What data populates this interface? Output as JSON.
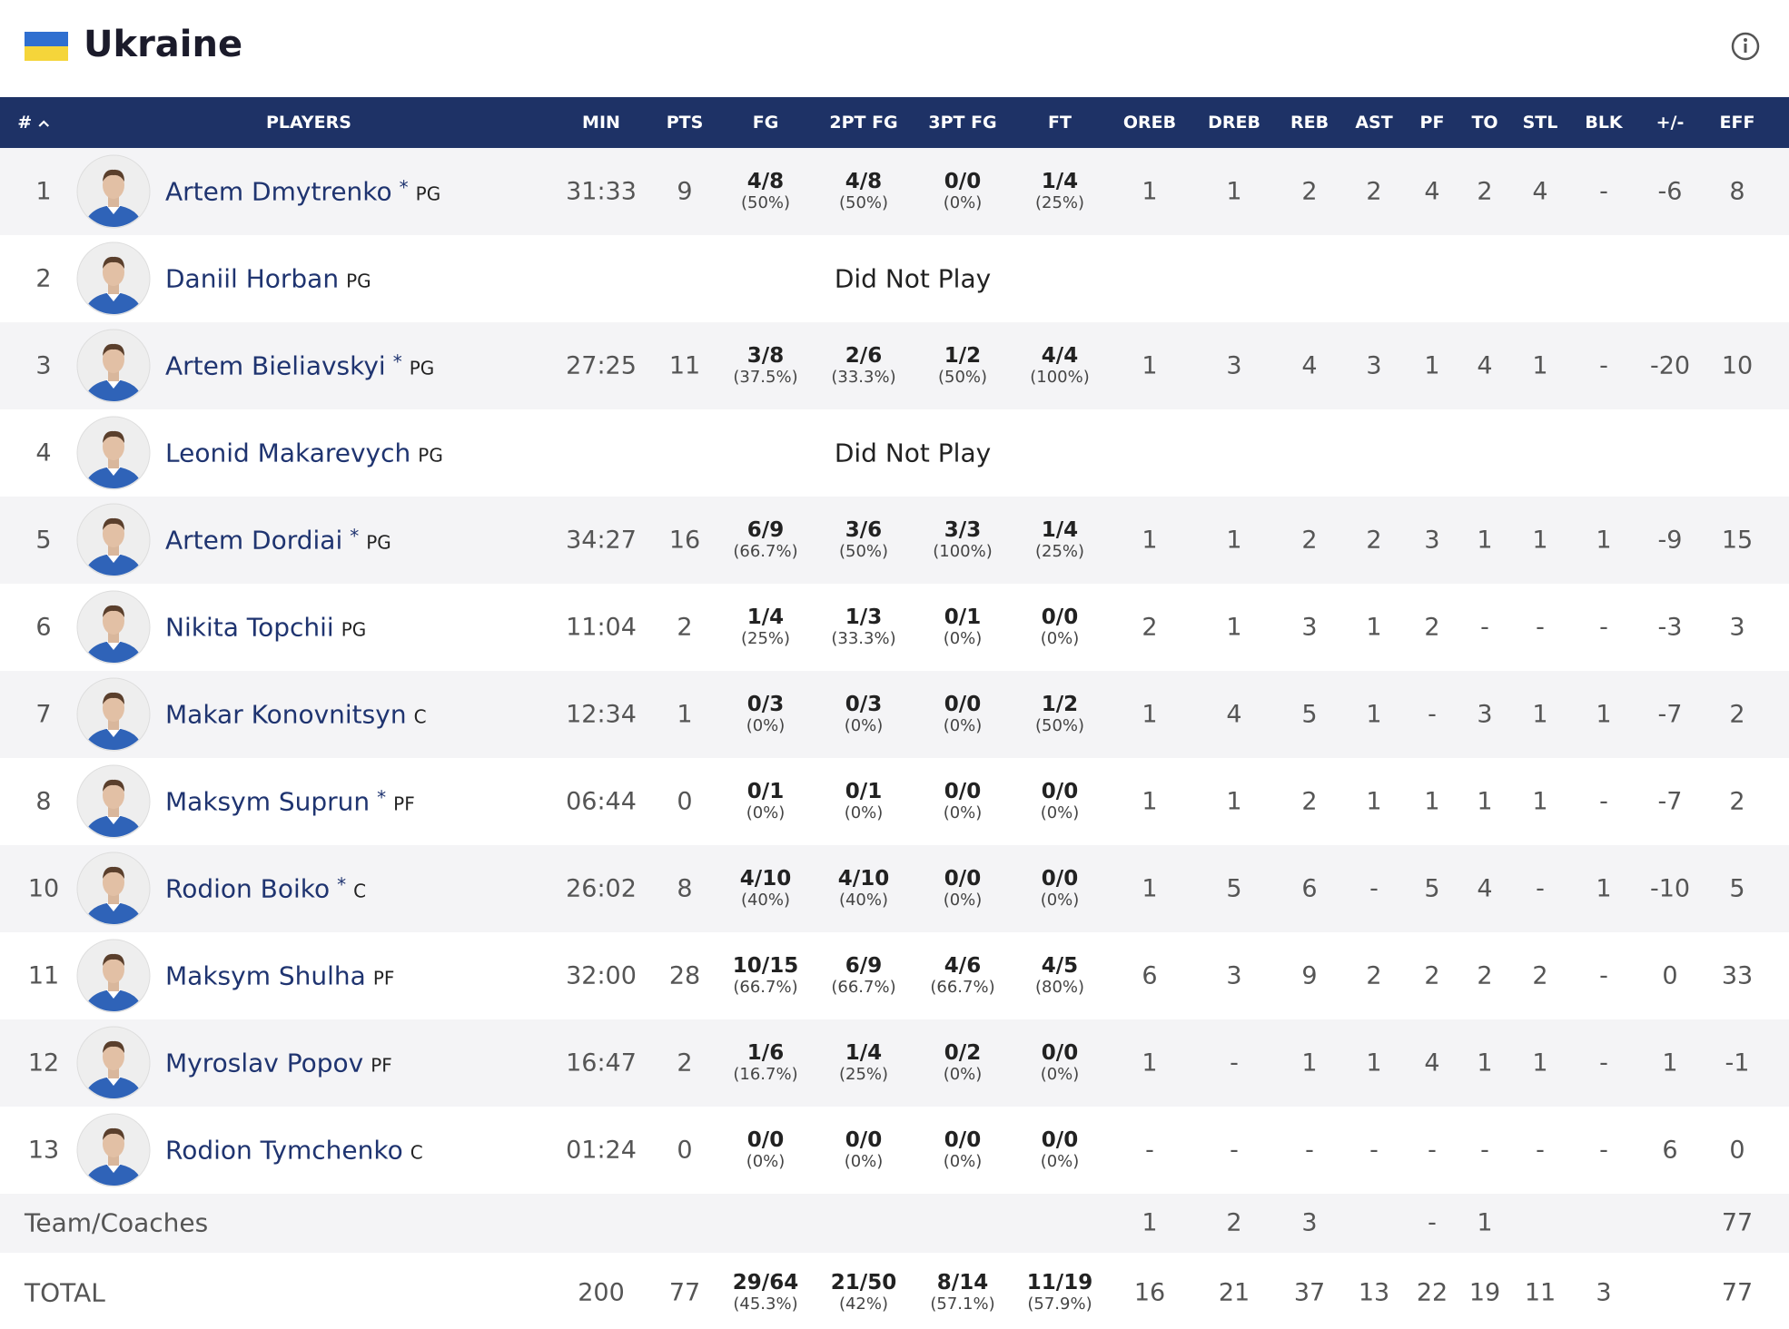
{
  "header": {
    "title": "Ukraine"
  },
  "table": {
    "columns": [
      "#",
      "PLAYERS",
      "MIN",
      "PTS",
      "FG",
      "2PT FG",
      "3PT FG",
      "FT",
      "OREB",
      "DREB",
      "REB",
      "AST",
      "PF",
      "TO",
      "STL",
      "BLK",
      "+/-",
      "EFF"
    ],
    "rows": [
      {
        "number": "1",
        "name": "Artem Dmytrenko",
        "starter": "*",
        "position": "PG",
        "stats": [
          "31:33",
          "9",
          {
            "made": "4/8",
            "pct": "(50%)"
          },
          {
            "made": "4/8",
            "pct": "(50%)"
          },
          {
            "made": "0/0",
            "pct": "(0%)"
          },
          {
            "made": "1/4",
            "pct": "(25%)"
          },
          "1",
          "1",
          "2",
          "2",
          "4",
          "2",
          "4",
          "-",
          "-6",
          "8"
        ]
      },
      {
        "number": "2",
        "name": "Daniil Horban",
        "position": "PG",
        "status": "Did Not Play"
      },
      {
        "number": "3",
        "name": "Artem Bieliavskyi",
        "starter": "*",
        "position": "PG",
        "stats": [
          "27:25",
          "11",
          {
            "made": "3/8",
            "pct": "(37.5%)"
          },
          {
            "made": "2/6",
            "pct": "(33.3%)"
          },
          {
            "made": "1/2",
            "pct": "(50%)"
          },
          {
            "made": "4/4",
            "pct": "(100%)"
          },
          "1",
          "3",
          "4",
          "3",
          "1",
          "4",
          "1",
          "-",
          "-20",
          "10"
        ]
      },
      {
        "number": "4",
        "name": "Leonid Makarevych",
        "position": "PG",
        "status": "Did Not Play"
      },
      {
        "number": "5",
        "name": "Artem Dordiai",
        "starter": "*",
        "position": "PG",
        "stats": [
          "34:27",
          "16",
          {
            "made": "6/9",
            "pct": "(66.7%)"
          },
          {
            "made": "3/6",
            "pct": "(50%)"
          },
          {
            "made": "3/3",
            "pct": "(100%)"
          },
          {
            "made": "1/4",
            "pct": "(25%)"
          },
          "1",
          "1",
          "2",
          "2",
          "3",
          "1",
          "1",
          "1",
          "-9",
          "15"
        ]
      },
      {
        "number": "6",
        "name": "Nikita Topchii",
        "position": "PG",
        "stats": [
          "11:04",
          "2",
          {
            "made": "1/4",
            "pct": "(25%)"
          },
          {
            "made": "1/3",
            "pct": "(33.3%)"
          },
          {
            "made": "0/1",
            "pct": "(0%)"
          },
          {
            "made": "0/0",
            "pct": "(0%)"
          },
          "2",
          "1",
          "3",
          "1",
          "2",
          "-",
          "-",
          "-",
          "-3",
          "3"
        ]
      },
      {
        "number": "7",
        "name": "Makar Konovnitsyn",
        "position": "C",
        "stats": [
          "12:34",
          "1",
          {
            "made": "0/3",
            "pct": "(0%)"
          },
          {
            "made": "0/3",
            "pct": "(0%)"
          },
          {
            "made": "0/0",
            "pct": "(0%)"
          },
          {
            "made": "1/2",
            "pct": "(50%)"
          },
          "1",
          "4",
          "5",
          "1",
          "-",
          "3",
          "1",
          "1",
          "-7",
          "2"
        ]
      },
      {
        "number": "8",
        "name": "Maksym Suprun",
        "starter": "*",
        "position": "PF",
        "stats": [
          "06:44",
          "0",
          {
            "made": "0/1",
            "pct": "(0%)"
          },
          {
            "made": "0/1",
            "pct": "(0%)"
          },
          {
            "made": "0/0",
            "pct": "(0%)"
          },
          {
            "made": "0/0",
            "pct": "(0%)"
          },
          "1",
          "1",
          "2",
          "1",
          "1",
          "1",
          "1",
          "-",
          "-7",
          "2"
        ]
      },
      {
        "number": "10",
        "name": "Rodion Boiko",
        "starter": "*",
        "position": "C",
        "stats": [
          "26:02",
          "8",
          {
            "made": "4/10",
            "pct": "(40%)"
          },
          {
            "made": "4/10",
            "pct": "(40%)"
          },
          {
            "made": "0/0",
            "pct": "(0%)"
          },
          {
            "made": "0/0",
            "pct": "(0%)"
          },
          "1",
          "5",
          "6",
          "-",
          "5",
          "4",
          "-",
          "1",
          "-10",
          "5"
        ]
      },
      {
        "number": "11",
        "name": "Maksym Shulha",
        "position": "PF",
        "stats": [
          "32:00",
          "28",
          {
            "made": "10/15",
            "pct": "(66.7%)"
          },
          {
            "made": "6/9",
            "pct": "(66.7%)"
          },
          {
            "made": "4/6",
            "pct": "(66.7%)"
          },
          {
            "made": "4/5",
            "pct": "(80%)"
          },
          "6",
          "3",
          "9",
          "2",
          "2",
          "2",
          "2",
          "-",
          "0",
          "33"
        ]
      },
      {
        "number": "12",
        "name": "Myroslav Popov",
        "position": "PF",
        "stats": [
          "16:47",
          "2",
          {
            "made": "1/6",
            "pct": "(16.7%)"
          },
          {
            "made": "1/4",
            "pct": "(25%)"
          },
          {
            "made": "0/2",
            "pct": "(0%)"
          },
          {
            "made": "0/0",
            "pct": "(0%)"
          },
          "1",
          "-",
          "1",
          "1",
          "4",
          "1",
          "1",
          "-",
          "1",
          "-1"
        ]
      },
      {
        "number": "13",
        "name": "Rodion Tymchenko",
        "position": "C",
        "stats": [
          "01:24",
          "0",
          {
            "made": "0/0",
            "pct": "(0%)"
          },
          {
            "made": "0/0",
            "pct": "(0%)"
          },
          {
            "made": "0/0",
            "pct": "(0%)"
          },
          {
            "made": "0/0",
            "pct": "(0%)"
          },
          "-",
          "-",
          "-",
          "-",
          "-",
          "-",
          "-",
          "-",
          "6",
          "0"
        ]
      }
    ],
    "team": {
      "label": "Team/Coaches",
      "stats": [
        null,
        null,
        null,
        null,
        null,
        null,
        "1",
        "2",
        "3",
        null,
        "-",
        "1",
        null,
        null,
        null,
        "77"
      ]
    },
    "total": {
      "label": "TOTAL",
      "stats": [
        "200",
        "77",
        {
          "made": "29/64",
          "pct": "(45.3%)"
        },
        {
          "made": "21/50",
          "pct": "(42%)"
        },
        {
          "made": "8/14",
          "pct": "(57.1%)"
        },
        {
          "made": "11/19",
          "pct": "(57.9%)"
        },
        "16",
        "21",
        "37",
        "13",
        "22",
        "19",
        "11",
        "3",
        null,
        "77"
      ]
    }
  }
}
